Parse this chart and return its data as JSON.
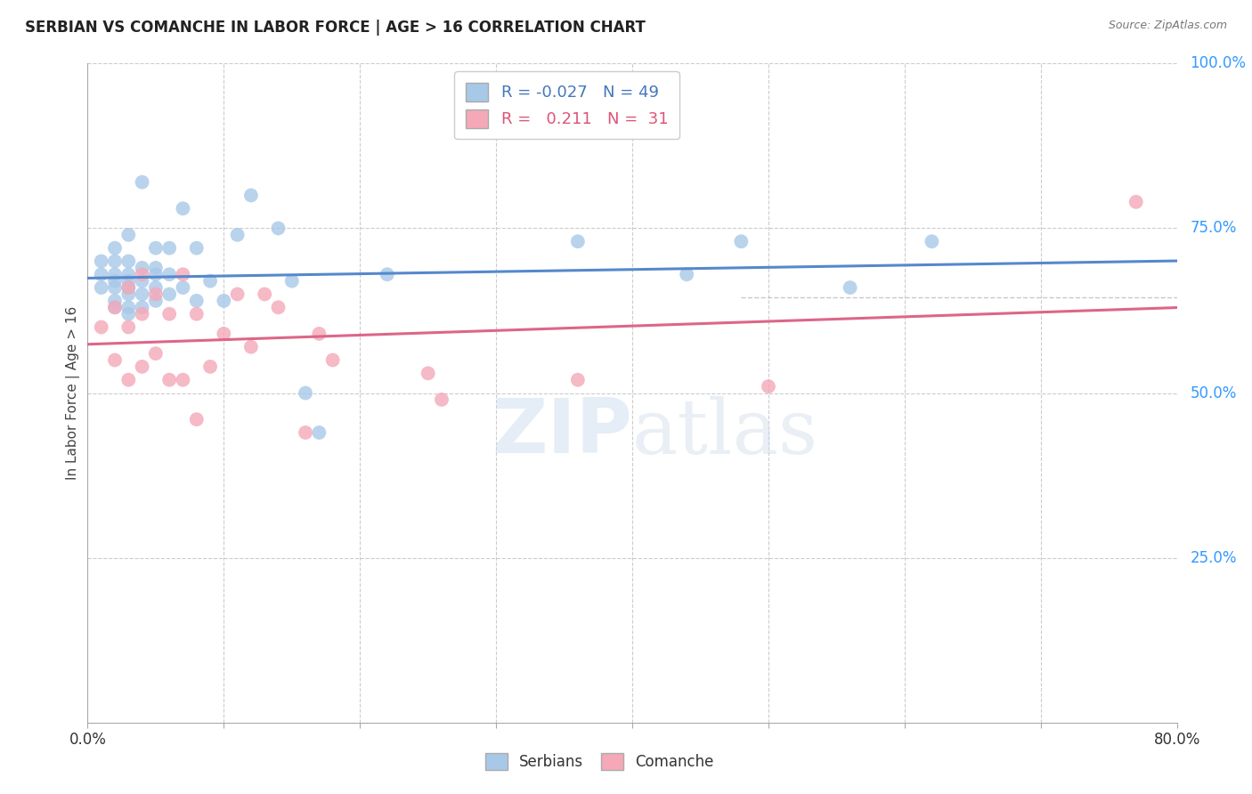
{
  "title": "SERBIAN VS COMANCHE IN LABOR FORCE | AGE > 16 CORRELATION CHART",
  "source": "Source: ZipAtlas.com",
  "ylabel": "In Labor Force | Age > 16",
  "xlim": [
    0.0,
    0.8
  ],
  "ylim": [
    0.0,
    1.0
  ],
  "yticks_right": [
    0.25,
    0.5,
    0.75,
    1.0
  ],
  "ytick_right_labels": [
    "25.0%",
    "50.0%",
    "75.0%",
    "100.0%"
  ],
  "blue_color": "#a8c8e8",
  "pink_color": "#f4a8b8",
  "line_blue": "#5588cc",
  "line_pink": "#dd6688",
  "legend_r_blue": "-0.027",
  "legend_n_blue": "49",
  "legend_r_pink": "0.211",
  "legend_n_pink": "31",
  "watermark_zip": "ZIP",
  "watermark_atlas": "atlas",
  "background_color": "#ffffff",
  "grid_color": "#cccccc",
  "blue_scatter_x": [
    0.01,
    0.01,
    0.01,
    0.02,
    0.02,
    0.02,
    0.02,
    0.02,
    0.02,
    0.02,
    0.03,
    0.03,
    0.03,
    0.03,
    0.03,
    0.03,
    0.03,
    0.03,
    0.04,
    0.04,
    0.04,
    0.04,
    0.04,
    0.05,
    0.05,
    0.05,
    0.05,
    0.05,
    0.06,
    0.06,
    0.06,
    0.07,
    0.07,
    0.08,
    0.08,
    0.09,
    0.1,
    0.11,
    0.12,
    0.14,
    0.15,
    0.16,
    0.17,
    0.22,
    0.36,
    0.44,
    0.48,
    0.56,
    0.62
  ],
  "blue_scatter_y": [
    0.66,
    0.68,
    0.7,
    0.63,
    0.64,
    0.66,
    0.67,
    0.68,
    0.7,
    0.72,
    0.62,
    0.63,
    0.65,
    0.66,
    0.67,
    0.68,
    0.7,
    0.74,
    0.63,
    0.65,
    0.67,
    0.69,
    0.82,
    0.64,
    0.66,
    0.68,
    0.69,
    0.72,
    0.65,
    0.68,
    0.72,
    0.66,
    0.78,
    0.64,
    0.72,
    0.67,
    0.64,
    0.74,
    0.8,
    0.75,
    0.67,
    0.5,
    0.44,
    0.68,
    0.73,
    0.68,
    0.73,
    0.66,
    0.73
  ],
  "pink_scatter_x": [
    0.01,
    0.02,
    0.02,
    0.03,
    0.03,
    0.03,
    0.04,
    0.04,
    0.04,
    0.05,
    0.05,
    0.06,
    0.06,
    0.07,
    0.07,
    0.08,
    0.08,
    0.09,
    0.1,
    0.11,
    0.12,
    0.13,
    0.14,
    0.16,
    0.17,
    0.18,
    0.25,
    0.26,
    0.36,
    0.5,
    0.77
  ],
  "pink_scatter_y": [
    0.6,
    0.55,
    0.63,
    0.52,
    0.6,
    0.66,
    0.54,
    0.62,
    0.68,
    0.56,
    0.65,
    0.52,
    0.62,
    0.52,
    0.68,
    0.46,
    0.62,
    0.54,
    0.59,
    0.65,
    0.57,
    0.65,
    0.63,
    0.44,
    0.59,
    0.55,
    0.53,
    0.49,
    0.52,
    0.51,
    0.79
  ],
  "hline_y": 0.645,
  "hline_xmin": 0.6
}
